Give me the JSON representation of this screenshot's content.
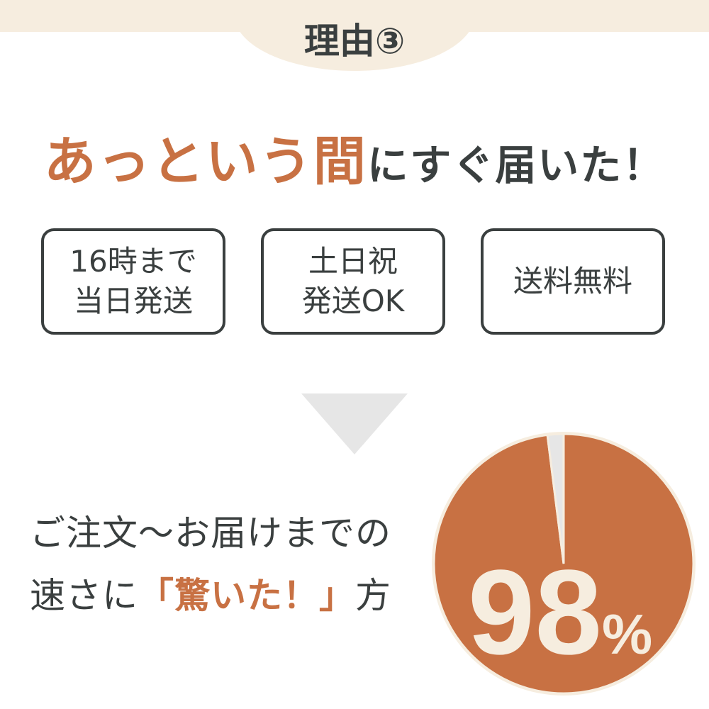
{
  "header": {
    "title": "理由③"
  },
  "headline": {
    "emphasis": "あっという間",
    "rest": "にすぐ届いた！"
  },
  "features": [
    {
      "line1": "16時まで",
      "line2": "当日発送"
    },
    {
      "line1": "土日祝",
      "line2": "発送OK"
    },
    {
      "line1": "送料無料",
      "line2": ""
    }
  ],
  "message": {
    "line1": "ご注文〜お届けまでの",
    "line2_pre": "速さに",
    "line2_em": "「驚いた！」",
    "line2_post": "方"
  },
  "colors": {
    "accent": "#c87143",
    "text": "#3a3f3f",
    "cream": "#f6eddf",
    "gray": "#e6e6e6"
  },
  "chart_data": {
    "type": "pie",
    "values": [
      98,
      2
    ],
    "label": "98",
    "unit": "%"
  }
}
